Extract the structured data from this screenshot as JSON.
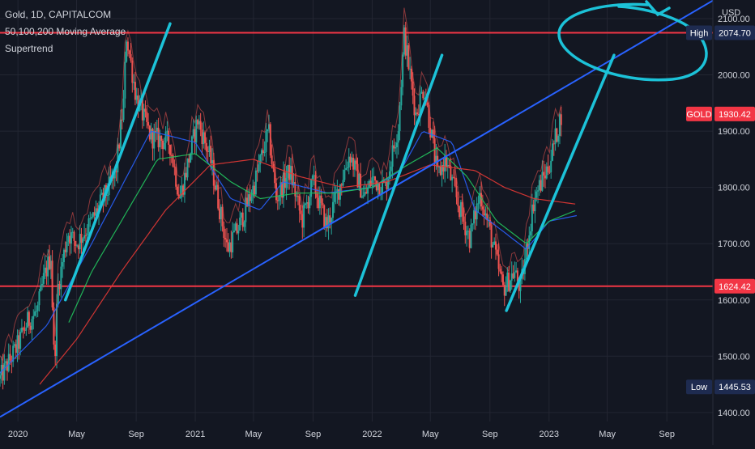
{
  "chart_data": {
    "type": "candlestick",
    "title": "Gold, 1D, CAPITALCOM",
    "indicators": [
      "50,100,200 Moving Average",
      "Supertrend"
    ],
    "currency": "USD",
    "y_ticks": [
      1400,
      1500,
      1600,
      1700,
      1800,
      1900,
      2000,
      2100
    ],
    "y_range": [
      1384,
      2133
    ],
    "x_ticks": [
      "2020",
      "May",
      "Sep",
      "2021",
      "May",
      "Sep",
      "2022",
      "May",
      "Sep",
      "2023",
      "May",
      "Sep"
    ],
    "x_range": [
      "2019-11-25",
      "2023-12-05"
    ],
    "x_tick_dates": [
      "2020-01-01",
      "2020-05-01",
      "2020-09-01",
      "2021-01-01",
      "2021-05-01",
      "2021-09-01",
      "2022-01-01",
      "2022-05-01",
      "2022-09-01",
      "2023-01-01",
      "2023-05-01",
      "2023-09-01"
    ],
    "grid": true,
    "price_series": {
      "name": "GOLD",
      "dates": [
        "2019-11-25",
        "2020-01-01",
        "2020-01-20",
        "2020-02-10",
        "2020-02-24",
        "2020-03-09",
        "2020-03-16",
        "2020-03-23",
        "2020-04-13",
        "2020-05-01",
        "2020-06-01",
        "2020-07-01",
        "2020-07-20",
        "2020-08-06",
        "2020-08-12",
        "2020-09-01",
        "2020-10-01",
        "2020-11-09",
        "2020-11-30",
        "2021-01-06",
        "2021-02-01",
        "2021-03-08",
        "2021-04-01",
        "2021-05-01",
        "2021-06-01",
        "2021-06-17",
        "2021-07-15",
        "2021-08-09",
        "2021-09-01",
        "2021-09-29",
        "2021-11-16",
        "2021-12-15",
        "2022-01-01",
        "2022-01-28",
        "2022-02-24",
        "2022-03-08",
        "2022-04-01",
        "2022-04-18",
        "2022-05-16",
        "2022-06-01",
        "2022-07-01",
        "2022-07-21",
        "2022-08-12",
        "2022-09-01",
        "2022-09-28",
        "2022-10-21",
        "2022-11-03",
        "2022-12-01",
        "2023-01-01",
        "2023-01-26"
      ],
      "close": [
        1460,
        1520,
        1560,
        1580,
        1640,
        1680,
        1480,
        1620,
        1720,
        1700,
        1740,
        1790,
        1820,
        1950,
        2070,
        1960,
        1890,
        1880,
        1780,
        1920,
        1850,
        1690,
        1730,
        1800,
        1900,
        1780,
        1830,
        1740,
        1810,
        1730,
        1860,
        1780,
        1815,
        1800,
        1910,
        2070,
        1930,
        1980,
        1820,
        1850,
        1760,
        1710,
        1790,
        1720,
        1620,
        1650,
        1620,
        1780,
        1840,
        1930
      ]
    },
    "moving_averages": [
      {
        "name": "MA50",
        "color": "#2962ff",
        "dates": [
          "2019-11-25",
          "2020-03-01",
          "2020-06-01",
          "2020-08-01",
          "2020-10-01",
          "2021-01-01",
          "2021-03-15",
          "2021-05-15",
          "2021-07-01",
          "2021-10-01",
          "2022-01-01",
          "2022-03-01",
          "2022-04-15",
          "2022-06-15",
          "2022-08-01",
          "2022-10-01",
          "2022-11-15",
          "2023-01-01",
          "2023-02-28"
        ],
        "values": [
          1470,
          1555,
          1700,
          1800,
          1900,
          1880,
          1780,
          1760,
          1810,
          1790,
          1800,
          1830,
          1900,
          1880,
          1760,
          1720,
          1690,
          1740,
          1750
        ]
      },
      {
        "name": "MA100",
        "color": "#22c55e",
        "dates": [
          "2020-04-15",
          "2020-06-01",
          "2020-08-15",
          "2020-10-15",
          "2021-01-01",
          "2021-03-15",
          "2021-05-15",
          "2021-08-01",
          "2021-10-15",
          "2022-01-01",
          "2022-03-15",
          "2022-05-15",
          "2022-07-15",
          "2022-09-15",
          "2022-11-15",
          "2023-01-01",
          "2023-02-28"
        ],
        "values": [
          1560,
          1650,
          1760,
          1850,
          1860,
          1810,
          1780,
          1790,
          1790,
          1800,
          1840,
          1870,
          1820,
          1740,
          1700,
          1740,
          1760
        ]
      },
      {
        "name": "MA200",
        "color": "#e53935",
        "dates": [
          "2020-02-15",
          "2020-05-01",
          "2020-08-01",
          "2020-11-01",
          "2021-02-01",
          "2021-05-01",
          "2021-08-01",
          "2021-11-01",
          "2022-02-01",
          "2022-05-01",
          "2022-08-01",
          "2022-10-01",
          "2022-12-01",
          "2023-01-15",
          "2023-02-28"
        ],
        "values": [
          1450,
          1530,
          1650,
          1760,
          1840,
          1850,
          1820,
          1800,
          1810,
          1840,
          1830,
          1800,
          1780,
          1775,
          1770
        ]
      }
    ],
    "horizontal_levels": [
      {
        "label": "High",
        "value": "2074.70",
        "price": 2074.7,
        "color": "#f23645"
      },
      {
        "label": "",
        "value": "1624.42",
        "price": 1624.42,
        "color": "#f23645"
      }
    ],
    "trendline": {
      "color": "#2962ff",
      "dates": [
        "2019-11-25",
        "2023-12-05"
      ],
      "prices": [
        1392,
        2132
      ]
    },
    "annotations": {
      "color": "#1cc2d8",
      "drawing": "hand-drawn upward strokes along each rally and an ellipse around the high",
      "strokes": [
        {
          "dates": [
            "2020-04-08",
            "2020-11-10"
          ],
          "prices": [
            1600,
            2091
          ]
        },
        {
          "dates": [
            "2021-11-27",
            "2022-05-25"
          ],
          "prices": [
            1608,
            2035
          ]
        },
        {
          "dates": [
            "2022-10-05",
            "2023-05-15"
          ],
          "prices": [
            1581,
            2035
          ]
        }
      ]
    },
    "labels": {
      "gold": {
        "name": "GOLD",
        "value": "1930.42",
        "price": 1930.42
      },
      "high": {
        "name": "High",
        "value": "2074.70",
        "price": 2074.7
      },
      "low": {
        "name": "Low",
        "value": "1445.53",
        "price": 1445.53
      }
    }
  }
}
